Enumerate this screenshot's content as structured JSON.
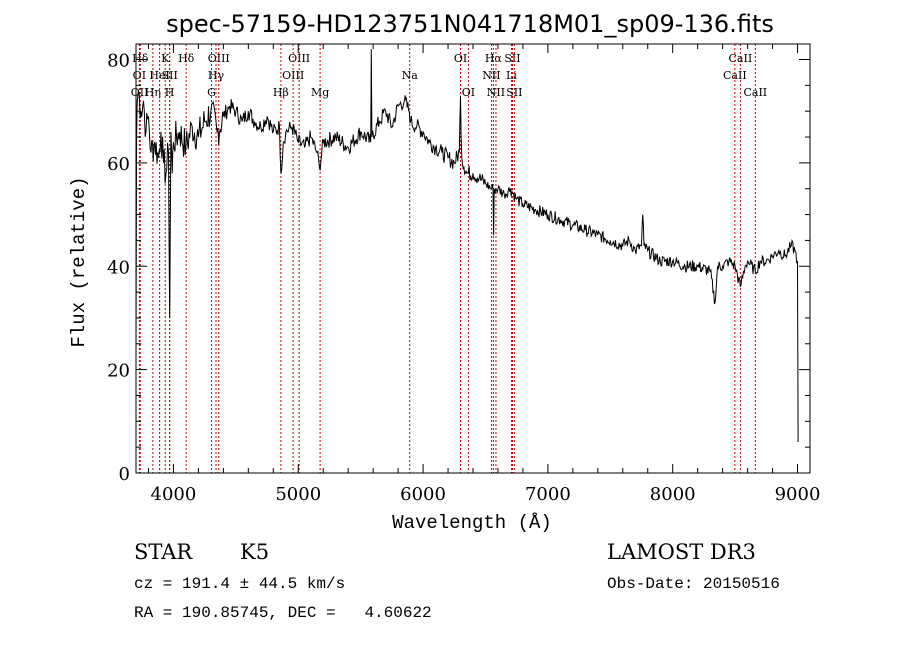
{
  "title": "spec-57159-HD123751N041718M01_sp09-136.fits",
  "info": {
    "object_class": "STAR",
    "subclass": "K5",
    "survey": "LAMOST DR3",
    "redshift": "cz = 191.4 ± 44.5 km/s",
    "obs_date": "Obs-Date: 20150516",
    "coords": "RA = 190.85745, DEC =   4.60622"
  },
  "chart_data": {
    "type": "line",
    "title": "spec-57159-HD123751N041718M01_sp09-136.fits",
    "xlabel": "Wavelength (Å)",
    "ylabel": "Flux (relative)",
    "xlim": [
      3700,
      9100
    ],
    "ylim": [
      0,
      83
    ],
    "xticks": [
      4000,
      5000,
      6000,
      7000,
      8000,
      9000
    ],
    "yticks": [
      0,
      20,
      40,
      60,
      80
    ],
    "grid": false,
    "line_color": "#000000",
    "marker_color": "#cc0000",
    "series": [
      {
        "x": [
          3700,
          3705,
          3710,
          3720,
          3740,
          3760,
          3780,
          3800,
          3820,
          3850,
          3880,
          3900,
          3920,
          3940,
          3960,
          3970,
          3980,
          3990,
          4000,
          4050,
          4100,
          4150,
          4200,
          4250,
          4300,
          4350,
          4400,
          4450,
          4500,
          4550,
          4600,
          4650,
          4700,
          4750,
          4800,
          4850,
          4861,
          4880,
          4900,
          4950,
          5000,
          5050,
          5100,
          5150,
          5170,
          5200,
          5300,
          5400,
          5500,
          5580,
          5585,
          5590,
          5650,
          5700,
          5750,
          5800,
          5850,
          5890,
          5900,
          5950,
          6000,
          6050,
          6100,
          6150,
          6200,
          6250,
          6290,
          6300,
          6310,
          6350,
          6400,
          6450,
          6500,
          6550,
          6560,
          6565,
          6570,
          6600,
          6650,
          6700,
          6750,
          6800,
          6900,
          7000,
          7100,
          7200,
          7300,
          7400,
          7500,
          7600,
          7650,
          7700,
          7750,
          7760,
          7770,
          7800,
          7900,
          8000,
          8100,
          8200,
          8300,
          8340,
          8360,
          8400,
          8450,
          8500,
          8542,
          8580,
          8600,
          8662,
          8700,
          8750,
          8800,
          8850,
          8900,
          8950,
          8980,
          9000,
          9005
        ],
        "y": [
          24,
          65,
          72,
          74,
          70,
          72,
          66,
          69,
          62,
          64,
          61,
          66,
          60,
          58,
          62,
          30,
          66,
          58,
          64,
          66,
          63,
          67,
          65,
          68,
          70,
          66,
          69,
          71,
          70,
          68,
          70,
          68,
          67,
          69,
          66,
          67,
          58,
          64,
          66,
          67,
          64,
          63,
          65,
          62,
          59,
          64,
          65,
          63,
          66,
          64,
          82,
          65,
          68,
          70,
          67,
          71,
          72,
          70,
          68,
          67,
          66,
          64,
          63,
          62,
          61,
          60,
          62,
          73,
          61,
          58,
          58,
          57,
          56,
          55,
          55,
          46,
          55,
          55,
          54,
          55,
          53,
          52,
          51,
          50,
          49,
          48,
          47,
          46,
          45,
          44,
          45,
          43,
          44,
          50,
          44,
          43,
          41,
          41,
          40,
          40,
          39,
          33,
          40,
          40,
          41,
          40,
          36,
          40,
          41,
          39,
          41,
          41,
          42,
          43,
          42,
          44,
          43,
          41,
          6
        ]
      }
    ],
    "line_markers": [
      {
        "label": "Hδ",
        "wl": 3734,
        "row": 0
      },
      {
        "label": "OI",
        "wl": 3727,
        "row": 1
      },
      {
        "label": "OII",
        "wl": 3729,
        "row": 2
      },
      {
        "label": "Hη",
        "wl": 3835,
        "row": 2
      },
      {
        "label": "HeI",
        "wl": 3889,
        "row": 1
      },
      {
        "label": "K",
        "wl": 3934,
        "row": 0
      },
      {
        "label": "SII",
        "wl": 3970,
        "row": 1
      },
      {
        "label": "H",
        "wl": 3969,
        "row": 2
      },
      {
        "label": "Hδ",
        "wl": 4102,
        "row": 0
      },
      {
        "label": "OIII",
        "wl": 4363,
        "row": 0
      },
      {
        "label": "Hγ",
        "wl": 4341,
        "row": 1
      },
      {
        "label": "G",
        "wl": 4305,
        "row": 2
      },
      {
        "label": "Hβ",
        "wl": 4861,
        "row": 2
      },
      {
        "label": "OIII",
        "wl": 5007,
        "row": 0
      },
      {
        "label": "OIII",
        "wl": 4959,
        "row": 1
      },
      {
        "label": "Mg",
        "wl": 5175,
        "row": 2
      },
      {
        "label": "Na",
        "wl": 5893,
        "row": 1
      },
      {
        "label": "OI",
        "wl": 6300,
        "row": 0
      },
      {
        "label": "OI",
        "wl": 6363,
        "row": 2
      },
      {
        "label": "Hα",
        "wl": 6563,
        "row": 0
      },
      {
        "label": "NII",
        "wl": 6548,
        "row": 1
      },
      {
        "label": "NII",
        "wl": 6584,
        "row": 2
      },
      {
        "label": "SII",
        "wl": 6716,
        "row": 0
      },
      {
        "label": "Li",
        "wl": 6708,
        "row": 1
      },
      {
        "label": "SII",
        "wl": 6731,
        "row": 2
      },
      {
        "label": "CaII",
        "wl": 8542,
        "row": 0
      },
      {
        "label": "CaII",
        "wl": 8498,
        "row": 1
      },
      {
        "label": "CaII",
        "wl": 8662,
        "row": 2
      }
    ]
  }
}
